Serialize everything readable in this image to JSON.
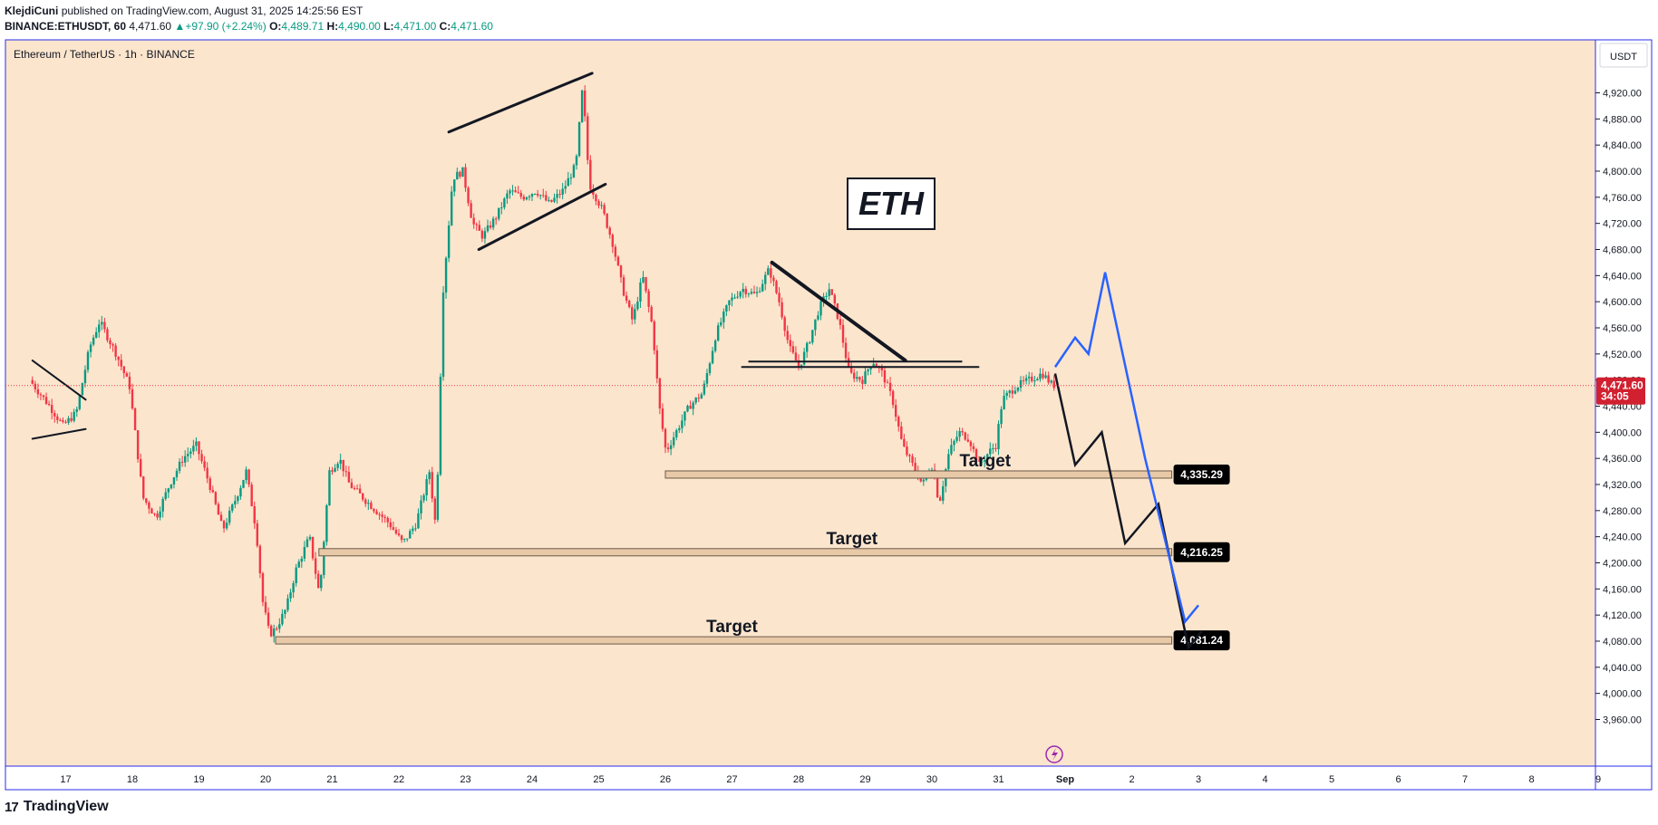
{
  "header": {
    "author": "KlejdiCuni",
    "published_text": "published on TradingView.com, August 31, 2025 14:25:56 EST",
    "symbol": "BINANCE:ETHUSDT, 60",
    "last": "4,471.60",
    "change": "+97.90 (+2.24%)",
    "o_label": "O:",
    "o_value": "4,489.71",
    "h_label": "H:",
    "h_value": "4,490.00",
    "l_label": "L:",
    "l_value": "4,471.00",
    "c_label": "C:",
    "c_value": "4,471.60"
  },
  "footer": {
    "brand": "TradingView",
    "logo_glyph": "17"
  },
  "chart_data": {
    "type": "candlestick",
    "title": "Ethereum / TetherUS · 1h · BINANCE",
    "currency": "USDT",
    "annotation": "ETH",
    "y_ticks": [
      3960,
      4000,
      4040,
      4080,
      4120,
      4160,
      4200,
      4240,
      4280,
      4320,
      4360,
      4400,
      4440,
      4480,
      4520,
      4560,
      4600,
      4640,
      4680,
      4720,
      4760,
      4800,
      4840,
      4880,
      4920
    ],
    "y_tick_labels": [
      "3,960.00",
      "4,000.00",
      "4,040.00",
      "4,080.00",
      "4,120.00",
      "4,160.00",
      "4,200.00",
      "4,240.00",
      "4,280.00",
      "4,320.00",
      "4,360.00",
      "4,400.00",
      "4,440.00",
      "4,480.00",
      "4,520.00",
      "4,560.00",
      "4,600.00",
      "4,640.00",
      "4,680.00",
      "4,720.00",
      "4,760.00",
      "4,800.00",
      "4,840.00",
      "4,880.00",
      "4,920.00"
    ],
    "ylim": [
      3935,
      4965
    ],
    "x_ticks": [
      "17",
      "18",
      "19",
      "20",
      "21",
      "22",
      "23",
      "24",
      "25",
      "26",
      "27",
      "28",
      "29",
      "30",
      "31",
      "Sep",
      "2",
      "3",
      "4",
      "5",
      "6",
      "7",
      "8",
      "9"
    ],
    "current_price": {
      "value": 4471.6,
      "label": "4,471.60",
      "countdown": "34:05"
    },
    "targets": [
      {
        "label": "Target",
        "value": 4335.29,
        "badge": "4,335.29"
      },
      {
        "label": "Target",
        "value": 4216.25,
        "badge": "4,216.25"
      },
      {
        "label": "Target",
        "value": 4081.24,
        "badge": "4,081.24"
      }
    ],
    "price_path": [
      [
        16.5,
        4480
      ],
      [
        16.8,
        4440
      ],
      [
        17.0,
        4410
      ],
      [
        17.2,
        4430
      ],
      [
        17.4,
        4530
      ],
      [
        17.55,
        4570
      ],
      [
        17.8,
        4520
      ],
      [
        18.0,
        4470
      ],
      [
        18.2,
        4300
      ],
      [
        18.4,
        4270
      ],
      [
        18.6,
        4320
      ],
      [
        18.8,
        4360
      ],
      [
        19.0,
        4380
      ],
      [
        19.2,
        4320
      ],
      [
        19.4,
        4250
      ],
      [
        19.6,
        4300
      ],
      [
        19.75,
        4340
      ],
      [
        19.9,
        4250
      ],
      [
        20.0,
        4140
      ],
      [
        20.1,
        4090
      ],
      [
        20.2,
        4100
      ],
      [
        20.35,
        4130
      ],
      [
        20.5,
        4190
      ],
      [
        20.7,
        4240
      ],
      [
        20.85,
        4150
      ],
      [
        21.0,
        4340
      ],
      [
        21.15,
        4360
      ],
      [
        21.3,
        4320
      ],
      [
        21.5,
        4300
      ],
      [
        21.7,
        4280
      ],
      [
        21.9,
        4260
      ],
      [
        22.1,
        4230
      ],
      [
        22.3,
        4260
      ],
      [
        22.5,
        4340
      ],
      [
        22.6,
        4250
      ],
      [
        22.7,
        4610
      ],
      [
        22.85,
        4790
      ],
      [
        23.0,
        4800
      ],
      [
        23.15,
        4720
      ],
      [
        23.3,
        4700
      ],
      [
        23.5,
        4730
      ],
      [
        23.7,
        4770
      ],
      [
        23.9,
        4760
      ],
      [
        24.1,
        4770
      ],
      [
        24.3,
        4750
      ],
      [
        24.5,
        4770
      ],
      [
        24.7,
        4810
      ],
      [
        24.8,
        4930
      ],
      [
        24.9,
        4780
      ],
      [
        25.0,
        4760
      ],
      [
        25.1,
        4740
      ],
      [
        25.25,
        4690
      ],
      [
        25.4,
        4620
      ],
      [
        25.55,
        4570
      ],
      [
        25.7,
        4640
      ],
      [
        25.85,
        4560
      ],
      [
        25.95,
        4440
      ],
      [
        26.05,
        4370
      ],
      [
        26.2,
        4400
      ],
      [
        26.4,
        4440
      ],
      [
        26.6,
        4460
      ],
      [
        26.8,
        4550
      ],
      [
        27.0,
        4600
      ],
      [
        27.2,
        4620
      ],
      [
        27.4,
        4610
      ],
      [
        27.6,
        4650
      ],
      [
        27.75,
        4600
      ],
      [
        27.9,
        4530
      ],
      [
        28.05,
        4500
      ],
      [
        28.2,
        4540
      ],
      [
        28.35,
        4590
      ],
      [
        28.5,
        4620
      ],
      [
        28.65,
        4570
      ],
      [
        28.8,
        4490
      ],
      [
        29.0,
        4480
      ],
      [
        29.15,
        4510
      ],
      [
        29.3,
        4490
      ],
      [
        29.45,
        4450
      ],
      [
        29.6,
        4380
      ],
      [
        29.75,
        4350
      ],
      [
        29.9,
        4320
      ],
      [
        30.05,
        4350
      ],
      [
        30.15,
        4290
      ],
      [
        30.3,
        4370
      ],
      [
        30.45,
        4400
      ],
      [
        30.6,
        4390
      ],
      [
        30.75,
        4350
      ],
      [
        30.9,
        4370
      ],
      [
        31.0,
        4380
      ],
      [
        31.1,
        4450
      ],
      [
        31.3,
        4470
      ],
      [
        31.5,
        4480
      ],
      [
        31.7,
        4490
      ],
      [
        31.85,
        4472
      ]
    ],
    "drawings": [
      {
        "kind": "wedge",
        "points": [
          [
            16.5,
            4510
          ],
          [
            17.3,
            4450
          ]
        ]
      },
      {
        "kind": "wedge",
        "points": [
          [
            16.5,
            4390
          ],
          [
            17.3,
            4405
          ]
        ]
      },
      {
        "kind": "channel",
        "points": [
          [
            22.75,
            4860
          ],
          [
            24.9,
            4950
          ]
        ]
      },
      {
        "kind": "channel",
        "points": [
          [
            23.2,
            4680
          ],
          [
            25.1,
            4780
          ]
        ]
      },
      {
        "kind": "trend",
        "points": [
          [
            27.6,
            4660
          ],
          [
            29.6,
            4510
          ]
        ]
      },
      {
        "kind": "resistance",
        "points": [
          [
            27.15,
            4500
          ],
          [
            30.7,
            4500
          ]
        ]
      }
    ],
    "projections": [
      {
        "color": "#131722",
        "points": [
          [
            31.85,
            4490
          ],
          [
            32.15,
            4350
          ],
          [
            32.55,
            4400
          ],
          [
            32.9,
            4230
          ],
          [
            33.4,
            4290
          ],
          [
            33.85,
            4070
          ],
          [
            34.05,
            4095
          ]
        ]
      },
      {
        "color": "#2962ff",
        "points": [
          [
            31.85,
            4500
          ],
          [
            32.15,
            4545
          ],
          [
            32.35,
            4520
          ],
          [
            32.6,
            4645
          ],
          [
            33.2,
            4360
          ],
          [
            33.8,
            4110
          ],
          [
            34.0,
            4135
          ]
        ]
      }
    ],
    "grid": false,
    "colors": {
      "background": "#fbe5cd",
      "up": "#089981",
      "down": "#f23645",
      "price_line": "#f23645",
      "border": "#2a2eec",
      "projection_blue": "#2962ff"
    }
  }
}
